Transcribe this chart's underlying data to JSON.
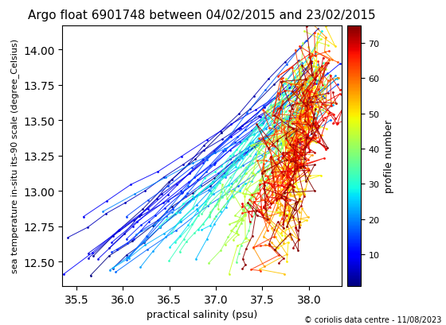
{
  "title": "Argo float 6901748 between 04/02/2015 and 23/02/2015",
  "xlabel": "practical salinity (psu)",
  "ylabel": "sea temperature in-situ its-90 scale (degree_Celsius)",
  "colorbar_label": "profile number",
  "copyright": "© coriolis data centre - 11/08/2023",
  "xlim": [
    35.35,
    38.35
  ],
  "ylim": [
    12.33,
    14.17
  ],
  "cmap": "jet",
  "vmin": 1,
  "vmax": 75,
  "colorbar_ticks": [
    10,
    20,
    30,
    40,
    50,
    60,
    70
  ],
  "n_profiles": 75,
  "seed": 7
}
